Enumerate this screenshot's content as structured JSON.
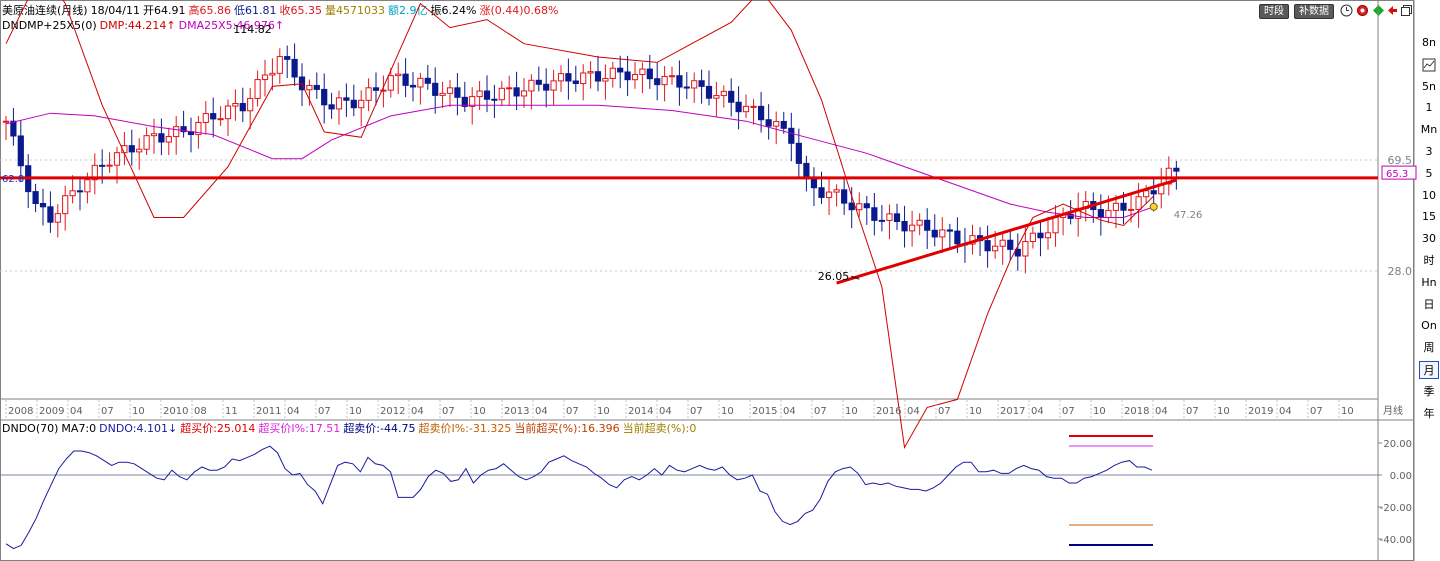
{
  "header": {
    "title": "美原油连续(月线)",
    "date": "18/04/11",
    "open": "开64.91",
    "high": "高65.86",
    "low": "低61.81",
    "close": "收65.35",
    "volume": "量4571033",
    "amount": "额2.9亿",
    "amplitude": "振6.24%",
    "change": "涨(0.44)0.68%",
    "indicator_line": {
      "name": "DNDMP+25X5(0)",
      "dmp": "DMP:44.214↑",
      "dma": "DMA25X5:46.976↑"
    }
  },
  "toolbar": {
    "buttons": [
      {
        "label": "时段",
        "icon": ""
      },
      {
        "label": "补数据",
        "icon": ""
      }
    ],
    "icons": [
      "clock-icon",
      "red-circle-icon",
      "green-diamond-icon",
      "red-arrow-icon",
      "restore-window-icon"
    ]
  },
  "right_toolbar": [
    "8n",
    "chart-icon",
    "5n",
    "1",
    "Mn",
    "3",
    "5",
    "10",
    "15",
    "30",
    "时",
    "Hn",
    "日",
    "On",
    "周",
    "月",
    "季",
    "年"
  ],
  "right_toolbar_active": "月",
  "colors": {
    "up": "#e0161b",
    "down": "#0a1a8c",
    "dmp": "#d00000",
    "dma": "#c000c0",
    "hline": "#e00000",
    "osc": "#1a1aa0",
    "grid": "#c8c8c8"
  },
  "chart_data": [
    {
      "type": "candlestick",
      "timeframe": "月线",
      "x_tick_labels": [
        "2008",
        "2009",
        "04",
        "07",
        "10",
        "2010",
        "08",
        "11",
        "2011",
        "04",
        "07",
        "10",
        "2012",
        "04",
        "07",
        "10",
        "2013",
        "04",
        "07",
        "10",
        "2014",
        "04",
        "07",
        "10",
        "2015",
        "04",
        "07",
        "10",
        "2016",
        "04",
        "07",
        "10",
        "2017",
        "04",
        "07",
        "10",
        "2018",
        "04",
        "07",
        "10",
        "2019",
        "04",
        "07",
        "10"
      ],
      "x_axis_unit_label": "月线",
      "y_tick_labels": [
        "69.5",
        "28.0"
      ],
      "y_ticks": [
        69.5,
        28.0
      ],
      "last_price_label": "65.3",
      "annotations": [
        {
          "text": "114.82",
          "value": 114.82,
          "index": 37
        },
        {
          "text": "26.05",
          "value": 26.05,
          "index": 115
        },
        {
          "text": "47.26",
          "value": 47.26,
          "index": 135
        }
      ],
      "horizontal_line": {
        "value": 62.8,
        "label": "62.8"
      },
      "trendline": {
        "from": {
          "index": 112,
          "value": 23.5
        },
        "to": {
          "index": 157,
          "value": 62.0
        }
      },
      "series": [
        {
          "name": "DMP",
          "value": "44.214"
        },
        {
          "name": "DMA25X5",
          "value": "46.976"
        }
      ],
      "dmp_anchors": [
        [
          0,
          113
        ],
        [
          5,
          141
        ],
        [
          8,
          128
        ],
        [
          13,
          90
        ],
        [
          20,
          48
        ],
        [
          24,
          48
        ],
        [
          30,
          67
        ],
        [
          36,
          97
        ],
        [
          40,
          98
        ],
        [
          43,
          80
        ],
        [
          48,
          78
        ],
        [
          56,
          128
        ],
        [
          60,
          119
        ],
        [
          65,
          122
        ],
        [
          70,
          113
        ],
        [
          80,
          108
        ],
        [
          88,
          106
        ],
        [
          92,
          112
        ],
        [
          98,
          121
        ],
        [
          102,
          133
        ],
        [
          106,
          118
        ],
        [
          110,
          92
        ],
        [
          114,
          56
        ],
        [
          118,
          22
        ],
        [
          121,
          -38
        ],
        [
          124,
          -23
        ],
        [
          128,
          -20
        ],
        [
          132,
          12
        ],
        [
          135,
          32
        ],
        [
          138,
          48
        ],
        [
          142,
          53
        ],
        [
          147,
          47
        ],
        [
          150,
          45
        ],
        [
          154,
          56
        ]
      ],
      "dma_anchors": [
        [
          0,
          83
        ],
        [
          6,
          87
        ],
        [
          12,
          86
        ],
        [
          20,
          82
        ],
        [
          28,
          79
        ],
        [
          36,
          70
        ],
        [
          40,
          70
        ],
        [
          44,
          77
        ],
        [
          52,
          86
        ],
        [
          60,
          90
        ],
        [
          70,
          90
        ],
        [
          80,
          90
        ],
        [
          90,
          88
        ],
        [
          100,
          84
        ],
        [
          108,
          78
        ],
        [
          116,
          72
        ],
        [
          122,
          66
        ],
        [
          128,
          60
        ],
        [
          135,
          53
        ],
        [
          140,
          50
        ],
        [
          145,
          48
        ],
        [
          150,
          48
        ],
        [
          154,
          52
        ]
      ]
    },
    {
      "type": "line",
      "indicator": "DNDO(70)",
      "header": {
        "name": "DNDO(70)",
        "ma": "MA7:0",
        "dndo": "DNDO:4.101↓",
        "overbuy_price": "超买价:25.014",
        "overbuy_pct": "超买价I%:17.51",
        "oversell_price": "超卖价:-44.75",
        "oversell_pct": "超卖价I%:-31.325",
        "cur_overbuy": "当前超买(%):16.396",
        "cur_oversell": "当前超卖(%):0"
      },
      "y_tick_labels": [
        "20.00",
        "0.00",
        "-20.00",
        "-40.00"
      ],
      "y_ticks": [
        20,
        0,
        -20,
        -40
      ],
      "ylim": [
        -46,
        20
      ],
      "values": [
        -43,
        -46,
        -44,
        -36,
        -27,
        -16,
        -6,
        4,
        10,
        15,
        15,
        14,
        12,
        9,
        6,
        8,
        8,
        7,
        4,
        1,
        -2,
        -3,
        3,
        -1,
        -3,
        2,
        5,
        3,
        3,
        5,
        10,
        9,
        11,
        13,
        16,
        18,
        14,
        4,
        0,
        1,
        -6,
        -10,
        -18,
        -6,
        6,
        8,
        7,
        2,
        11,
        7,
        6,
        2,
        -14,
        -14,
        -14,
        -9,
        -1,
        3,
        1,
        -4,
        -3,
        4,
        -5,
        0,
        3,
        4,
        7,
        3,
        -1,
        -3,
        -1,
        2,
        8,
        10,
        12,
        9,
        7,
        5,
        1,
        -2,
        -6,
        -8,
        -3,
        -1,
        -3,
        0,
        4,
        0,
        6,
        3,
        2,
        4,
        6,
        4,
        3,
        5,
        0,
        -3,
        -2,
        0,
        -10,
        -12,
        -23,
        -29,
        -31,
        -29,
        -24,
        -22,
        -15,
        -4,
        2,
        4,
        5,
        1,
        -6,
        -5,
        -6,
        -5,
        -7,
        -8,
        -9,
        -9,
        -10,
        -8,
        -5,
        0,
        5,
        8,
        8,
        2,
        2,
        3,
        1,
        1,
        4,
        6,
        4,
        3,
        -1,
        -2,
        -2,
        -5,
        -5,
        -2,
        -1,
        1,
        3,
        6,
        8,
        9,
        5,
        5,
        3
      ],
      "reference_lines": [
        {
          "value": 25.014,
          "color": "#e00000"
        },
        {
          "value": 17.51,
          "color": "#e020e0"
        },
        {
          "value": -31.325,
          "color": "#c06000"
        },
        {
          "value": -44.75,
          "color": "#000080"
        }
      ]
    }
  ]
}
